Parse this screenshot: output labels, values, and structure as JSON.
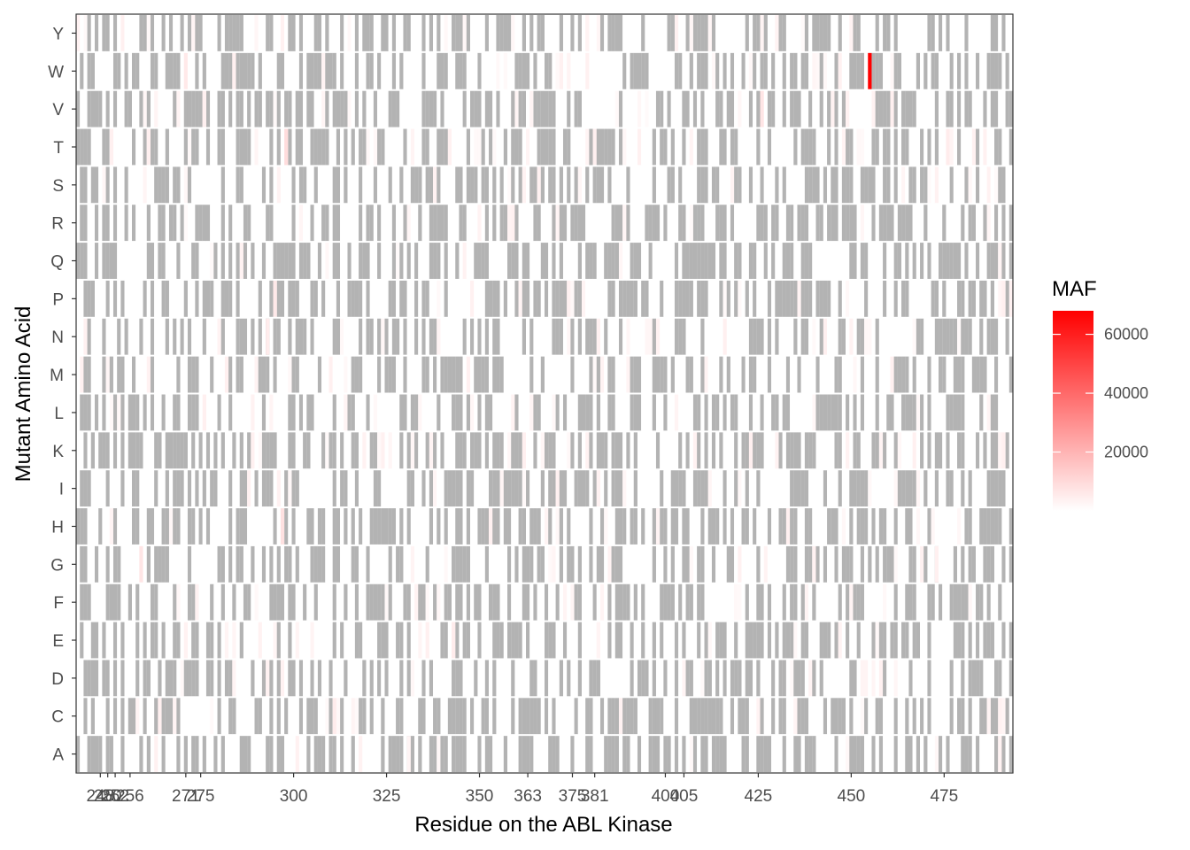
{
  "chart_data": {
    "type": "heatmap",
    "title": "",
    "xlabel": "Residue on the ABL Kinase",
    "ylabel": "Mutant Amino Acid",
    "x_range": [
      242,
      493
    ],
    "x_ticks": [
      248,
      250,
      252,
      256,
      271,
      275,
      300,
      325,
      350,
      363,
      375,
      381,
      400,
      405,
      425,
      450,
      475
    ],
    "y_categories": [
      "A",
      "C",
      "D",
      "E",
      "F",
      "G",
      "H",
      "I",
      "K",
      "L",
      "M",
      "N",
      "P",
      "Q",
      "R",
      "S",
      "T",
      "V",
      "W",
      "Y"
    ],
    "missing_color": "#b3b3b3",
    "low_color": "#ffffff",
    "high_color": "#ff0000",
    "legend": {
      "title": "MAF",
      "min": 0,
      "max": 68000,
      "breaks": [
        20000,
        40000,
        60000
      ],
      "labels": [
        "20000",
        "40000",
        "60000"
      ],
      "placement": "right"
    },
    "highlighted_cells": [
      {
        "x": 455,
        "y": "W",
        "value": 68000
      },
      {
        "x": 298,
        "y": "T",
        "value": 9000
      },
      {
        "x": 297,
        "y": "H",
        "value": 8000
      },
      {
        "x": 426,
        "y": "V",
        "value": 7000
      },
      {
        "x": 259,
        "y": "G",
        "value": 7000
      },
      {
        "x": 271,
        "y": "W",
        "value": 6000
      },
      {
        "x": 295,
        "y": "P",
        "value": 6000
      },
      {
        "x": 293,
        "y": "N",
        "value": 5000
      },
      {
        "x": 343,
        "y": "E",
        "value": 5000
      },
      {
        "x": 311,
        "y": "C",
        "value": 5000
      },
      {
        "x": 476,
        "y": "T",
        "value": 5000
      },
      {
        "x": 473,
        "y": "G",
        "value": 4000
      },
      {
        "x": 276,
        "y": "V",
        "value": 4000
      },
      {
        "x": 491,
        "y": "K",
        "value": 4000
      },
      {
        "x": 491,
        "y": "P",
        "value": 4000
      },
      {
        "x": 416,
        "y": "N",
        "value": 4000
      },
      {
        "x": 251,
        "y": "T",
        "value": 4000
      },
      {
        "x": 261,
        "y": "T",
        "value": 4000
      },
      {
        "x": 364,
        "y": "V",
        "value": 3000
      },
      {
        "x": 331,
        "y": "A",
        "value": 3000
      },
      {
        "x": 382,
        "y": "E",
        "value": 3000
      },
      {
        "x": 374,
        "y": "W",
        "value": 3000
      },
      {
        "x": 398,
        "y": "H",
        "value": 3000
      },
      {
        "x": 487,
        "y": "C",
        "value": 3000
      }
    ],
    "background_seed": 20
  }
}
